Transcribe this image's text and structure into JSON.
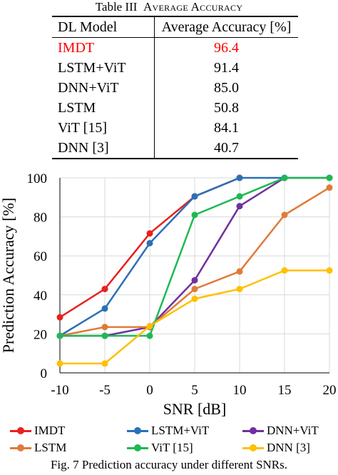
{
  "table": {
    "caption_prefix": "Table III",
    "caption_title": "Average Accuracy",
    "headers": [
      "DL Model",
      "Average Accuracy [%]"
    ],
    "rows": [
      {
        "model": "IMDT",
        "accuracy": "96.4",
        "highlight": true
      },
      {
        "model": "LSTM+ViT",
        "accuracy": "91.4"
      },
      {
        "model": "DNN+ViT",
        "accuracy": "85.0"
      },
      {
        "model": "LSTM",
        "accuracy": "50.8"
      },
      {
        "model": "ViT [15]",
        "accuracy": "84.1"
      },
      {
        "model": "DNN [3]",
        "accuracy": "40.7"
      }
    ],
    "highlight_color": "#ff0000"
  },
  "chart_data": {
    "type": "line",
    "xlabel": "SNR [dB]",
    "ylabel": "Prediction Accuracy [%]",
    "x": [
      -10,
      -5,
      0,
      5,
      10,
      15,
      20
    ],
    "xlim": [
      -10,
      20
    ],
    "ylim": [
      0,
      100
    ],
    "xticks": [
      -10,
      -5,
      0,
      5,
      10,
      15,
      20
    ],
    "yticks": [
      0,
      20,
      40,
      60,
      80,
      100
    ],
    "grid": true,
    "legend_position": "bottom",
    "series": [
      {
        "name": "IMDT",
        "color": "#e8201e",
        "x": [
          -10,
          -5,
          0,
          5,
          10
        ],
        "values": [
          28.5,
          43,
          71.5,
          90.5,
          100
        ]
      },
      {
        "name": "LSTM+ViT",
        "color": "#2a70b7",
        "x": [
          -10,
          -5,
          0,
          5,
          10,
          15
        ],
        "values": [
          19,
          33,
          66.5,
          90.5,
          100,
          100
        ]
      },
      {
        "name": "DNN+ViT",
        "color": "#7030a0",
        "x": [
          -10,
          -5,
          0,
          5,
          10,
          15,
          20
        ],
        "values": [
          19,
          19,
          23.5,
          47.5,
          85.5,
          100,
          100
        ]
      },
      {
        "name": "LSTM",
        "color": "#e07b39",
        "x": [
          -10,
          -5,
          0,
          5,
          10,
          15,
          20
        ],
        "values": [
          19,
          23.5,
          23.5,
          43,
          52,
          81,
          95
        ]
      },
      {
        "name": "ViT [15]",
        "color": "#1db954",
        "x": [
          -10,
          -5,
          0,
          5,
          10,
          15,
          20
        ],
        "values": [
          19,
          19,
          19,
          81,
          90.5,
          100,
          100
        ]
      },
      {
        "name": "DNN [3]",
        "color": "#ffc000",
        "x": [
          -10,
          -5,
          0,
          5,
          10,
          15,
          20
        ],
        "values": [
          4.8,
          4.8,
          24,
          38,
          43,
          52.5,
          52.5
        ]
      }
    ]
  },
  "figure_caption": "Fig. 7  Prediction accuracy under different SNRs."
}
